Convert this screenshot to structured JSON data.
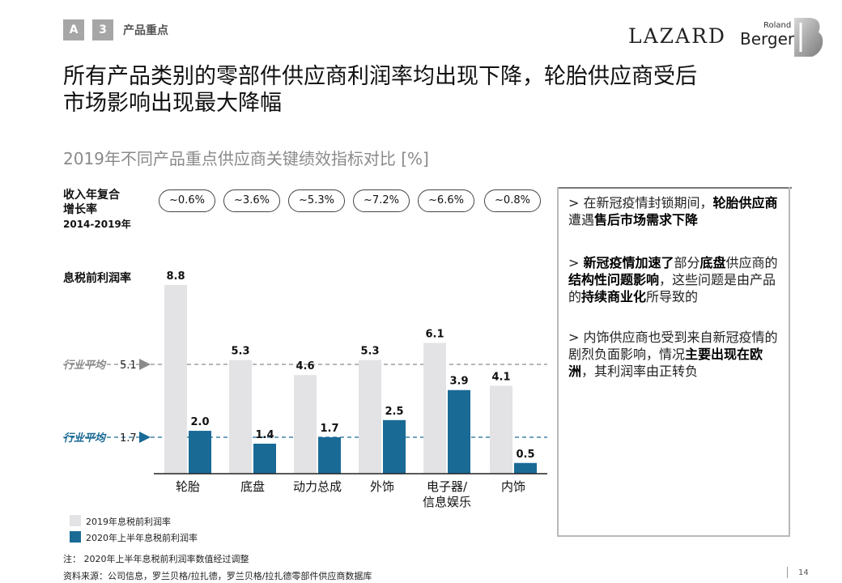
{
  "header": {
    "tag_letter": "A",
    "tag_number": "3",
    "section": "产品重点",
    "logo_lazard": "LAZARD",
    "logo_roland": "Roland",
    "logo_berger": "Berger"
  },
  "title_line1": "所有产品类别的零部件供应商利润率均出现下降，轮胎供应商受后",
  "title_line2": "市场影响出现最大降幅",
  "subtitle": "2019年不同产品重点供应商关键绩效指标对比 [%]",
  "growth": {
    "label_line1": "收入年复合",
    "label_line2": "增长率",
    "label_line3": "2014-2019年",
    "values": [
      "~0.6%",
      "~3.6%",
      "~5.3%",
      "~7.2%",
      "~6.6%",
      "~0.8%"
    ]
  },
  "ebit_label": "息税前利润率",
  "chart_data": {
    "type": "bar",
    "categories": [
      "轮胎",
      "底盘",
      "动力总成",
      "外饰",
      "电子器/\n信息娱乐",
      "内饰"
    ],
    "category_lines": [
      [
        "轮胎"
      ],
      [
        "底盘"
      ],
      [
        "动力总成"
      ],
      [
        "外饰"
      ],
      [
        "电子器/",
        "信息娱乐"
      ],
      [
        "内饰"
      ]
    ],
    "series": [
      {
        "name": "2019年息税前利润率",
        "color": "#e3e3e6",
        "values": [
          8.8,
          5.3,
          4.6,
          5.3,
          6.1,
          4.1
        ]
      },
      {
        "name": "2020年上半年息税前利润率",
        "color": "#1a6a96",
        "values": [
          2.0,
          1.4,
          1.7,
          2.5,
          3.9,
          0.5
        ]
      }
    ],
    "reference_lines": [
      {
        "label": "行业平均",
        "value": 5.1,
        "value_text": "5.1",
        "color": "#8c8c8c"
      },
      {
        "label": "行业平均",
        "value": 1.7,
        "value_text": "1.7",
        "color": "#1a6a96"
      }
    ],
    "ylim": [
      0,
      8.8
    ]
  },
  "commentary": [
    {
      "parts": [
        [
          "> 在新冠疫情封锁期间，",
          false
        ],
        [
          "轮胎供应商",
          true
        ],
        [
          "遭遇",
          false
        ],
        [
          "售后市场需求下降",
          true
        ]
      ]
    },
    {
      "parts": [
        [
          "> ",
          false
        ],
        [
          "新冠疫情加速了",
          true
        ],
        [
          "部分",
          false
        ],
        [
          "底盘",
          true
        ],
        [
          "供应商的",
          false
        ],
        [
          "结构性问题影响",
          true
        ],
        [
          "，这些问题是由产品的",
          false
        ],
        [
          "持续商业化",
          true
        ],
        [
          "所导致的",
          false
        ]
      ]
    },
    {
      "parts": [
        [
          "> 内饰供应商也受到来自新冠疫情的剧烈负面影响，情况",
          false
        ],
        [
          "主要出现在欧洲",
          true
        ],
        [
          "，其利润率由正转负",
          false
        ]
      ]
    }
  ],
  "legend": {
    "item1": "2019年息税前利润率",
    "item2": "2020年上半年息税前利润率"
  },
  "note": "注：  2020年上半年息税前利润率数值经过调整",
  "source": "资料来源：公司信息，罗兰贝格/拉扎德，罗兰贝格/拉扎德零部件供应商数据库",
  "page_number": "14"
}
